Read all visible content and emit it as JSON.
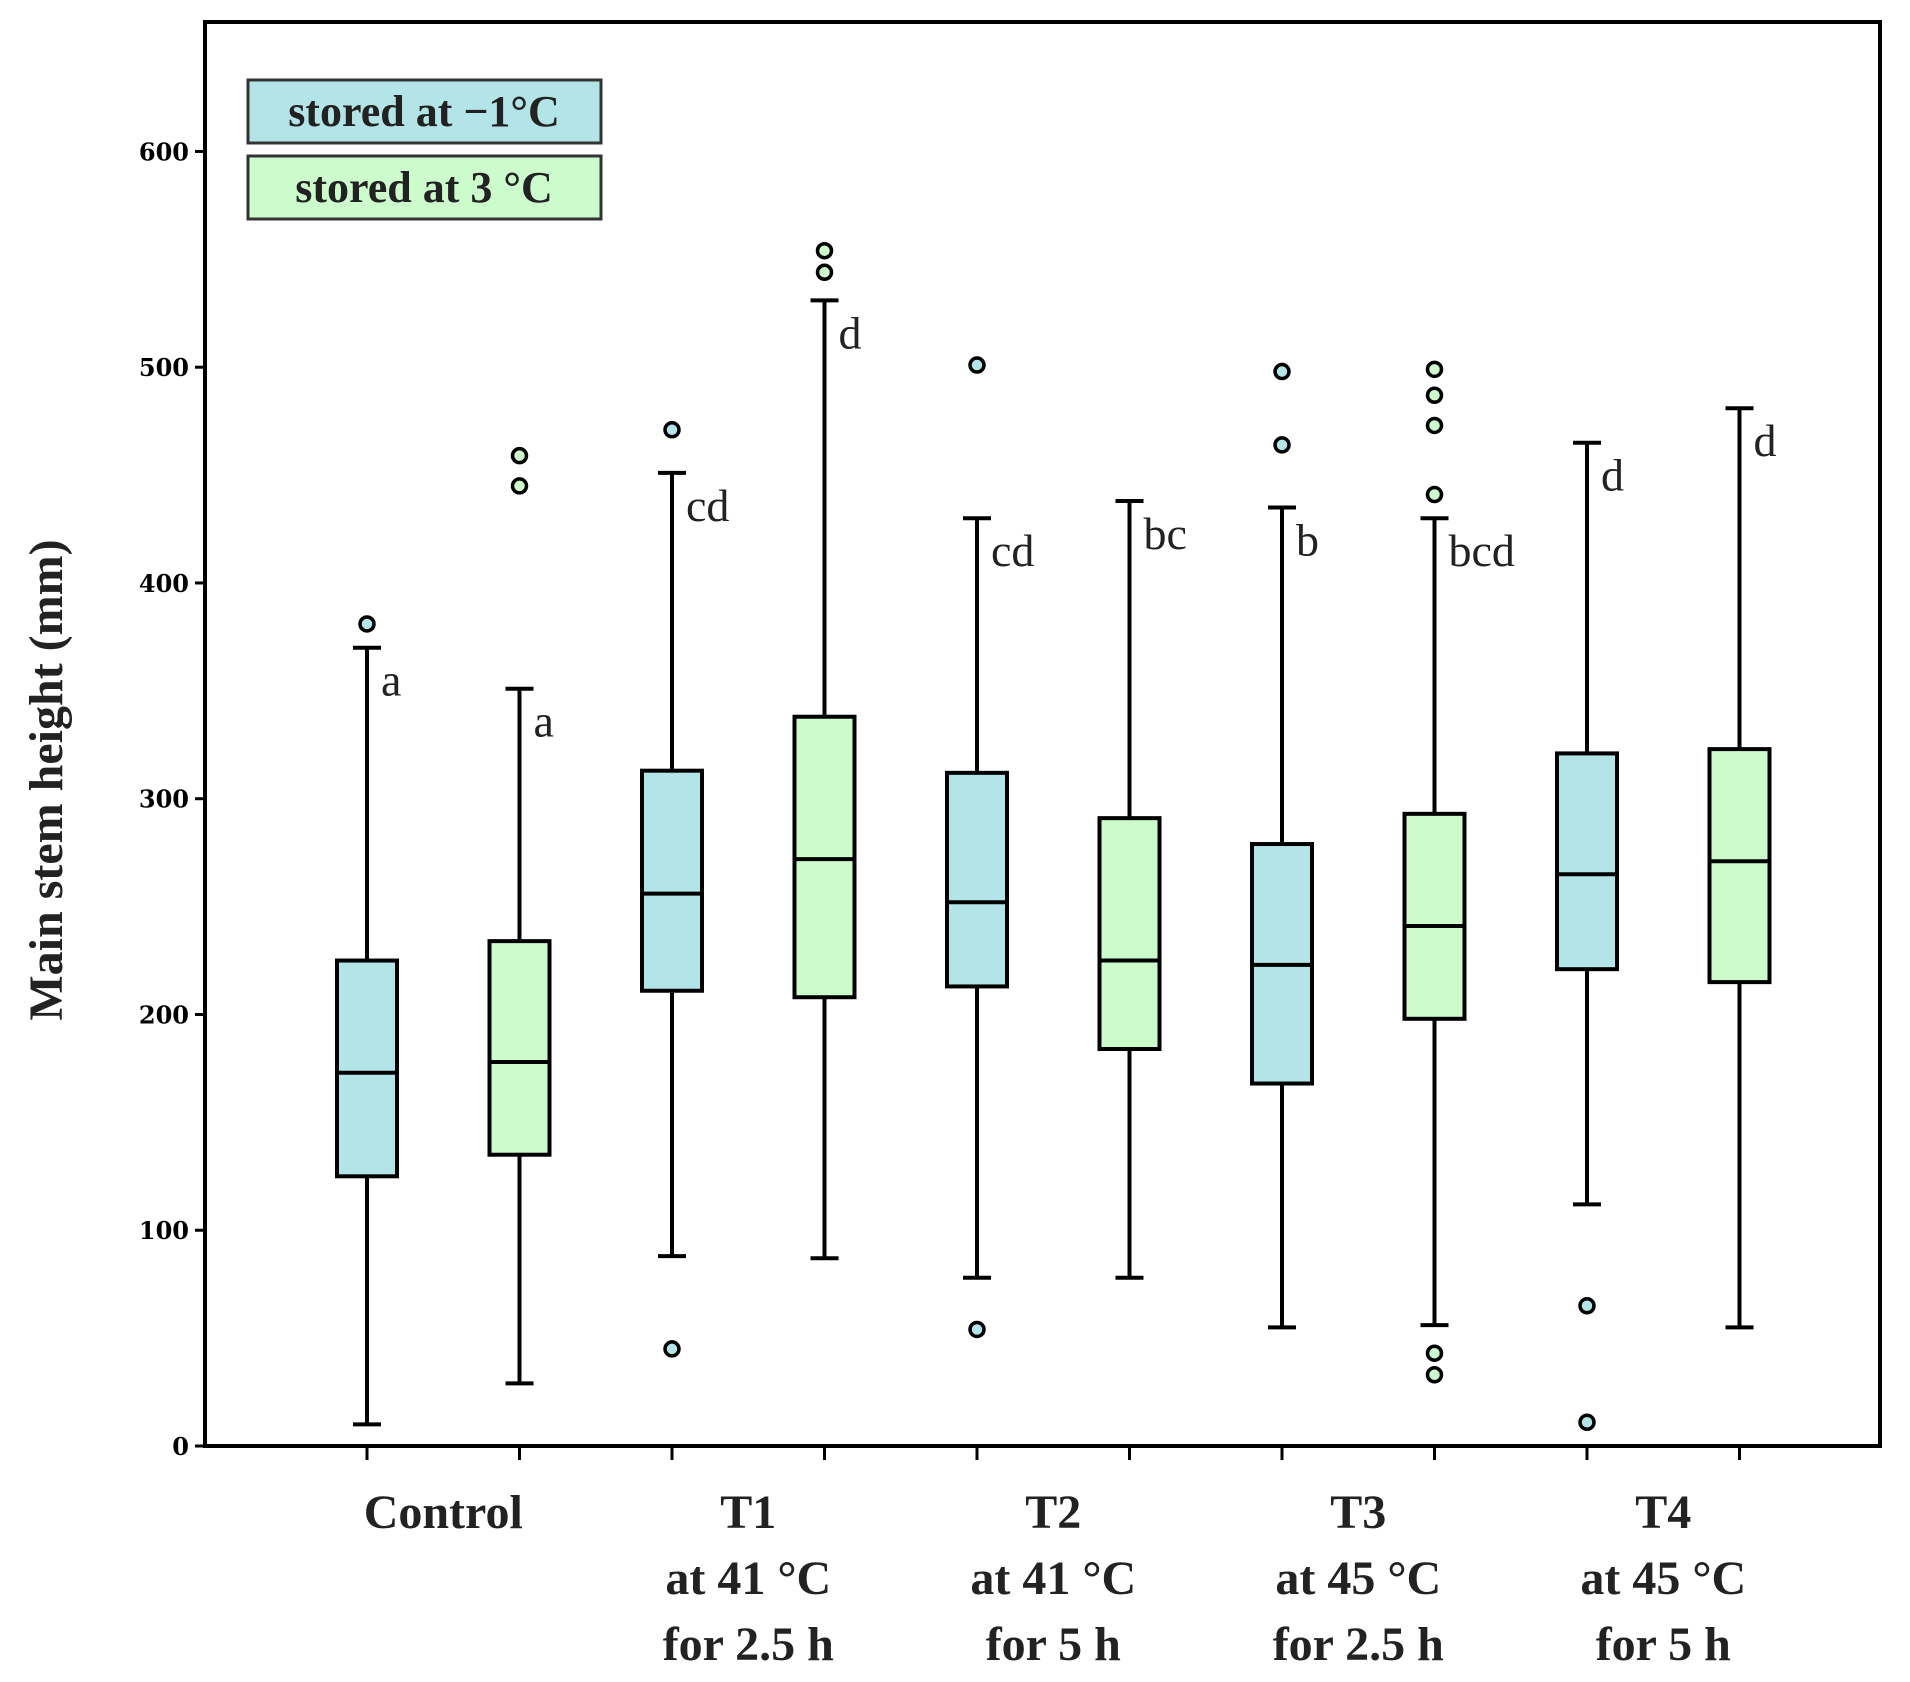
{
  "chart_data": {
    "type": "box",
    "title": "",
    "xlabel": "",
    "ylabel": "Main stem height (mm)",
    "ylim": [
      0,
      660
    ],
    "yticks": [
      0,
      100,
      200,
      300,
      400,
      500,
      600
    ],
    "grid": false,
    "legend_position": "top-left",
    "groups": [
      {
        "name": "control",
        "lines": [
          "Control"
        ]
      },
      {
        "name": "t1",
        "lines": [
          "T1",
          "at 41 °C",
          "for 2.5 h"
        ]
      },
      {
        "name": "t2",
        "lines": [
          "T2",
          "at 41 °C",
          "for 5 h"
        ]
      },
      {
        "name": "t3",
        "lines": [
          "T3",
          "at 45 °C",
          "for 2.5 h"
        ]
      },
      {
        "name": "t4",
        "lines": [
          "T4",
          "at 45 °C",
          "for 5 h"
        ]
      }
    ],
    "series": [
      {
        "name": "stored at −1°C",
        "color": "#b3e5e8",
        "boxes": [
          {
            "whislo": 10,
            "q1": 125,
            "med": 173,
            "q3": 225,
            "whishi": 370,
            "fliers": [
              381
            ],
            "label": "a"
          },
          {
            "whislo": 88,
            "q1": 211,
            "med": 256,
            "q3": 313,
            "whishi": 451,
            "fliers": [
              471,
              45
            ],
            "label": "cd"
          },
          {
            "whislo": 78,
            "q1": 213,
            "med": 252,
            "q3": 312,
            "whishi": 430,
            "fliers": [
              501,
              54
            ],
            "label": "cd"
          },
          {
            "whislo": 55,
            "q1": 168,
            "med": 223,
            "q3": 279,
            "whishi": 435,
            "fliers": [
              498,
              464
            ],
            "label": "b"
          },
          {
            "whislo": 112,
            "q1": 221,
            "med": 265,
            "q3": 321,
            "whishi": 465,
            "fliers": [
              65,
              11
            ],
            "label": "d"
          }
        ]
      },
      {
        "name": "stored at 3 °C",
        "color": "#ccfccc",
        "boxes": [
          {
            "whislo": 29,
            "q1": 135,
            "med": 178,
            "q3": 234,
            "whishi": 351,
            "fliers": [
              459,
              445
            ],
            "label": "a"
          },
          {
            "whislo": 87,
            "q1": 208,
            "med": 272,
            "q3": 338,
            "whishi": 531,
            "fliers": [
              554,
              544
            ],
            "label": "d"
          },
          {
            "whislo": 78,
            "q1": 184,
            "med": 225,
            "q3": 291,
            "whishi": 438,
            "fliers": [],
            "label": "bc"
          },
          {
            "whislo": 56,
            "q1": 198,
            "med": 241,
            "q3": 293,
            "whishi": 430,
            "fliers": [
              499,
              487,
              473,
              441,
              43,
              33
            ],
            "label": "bcd"
          },
          {
            "whislo": 55,
            "q1": 215,
            "med": 271,
            "q3": 323,
            "whishi": 481,
            "fliers": [],
            "label": "d"
          }
        ]
      }
    ]
  }
}
